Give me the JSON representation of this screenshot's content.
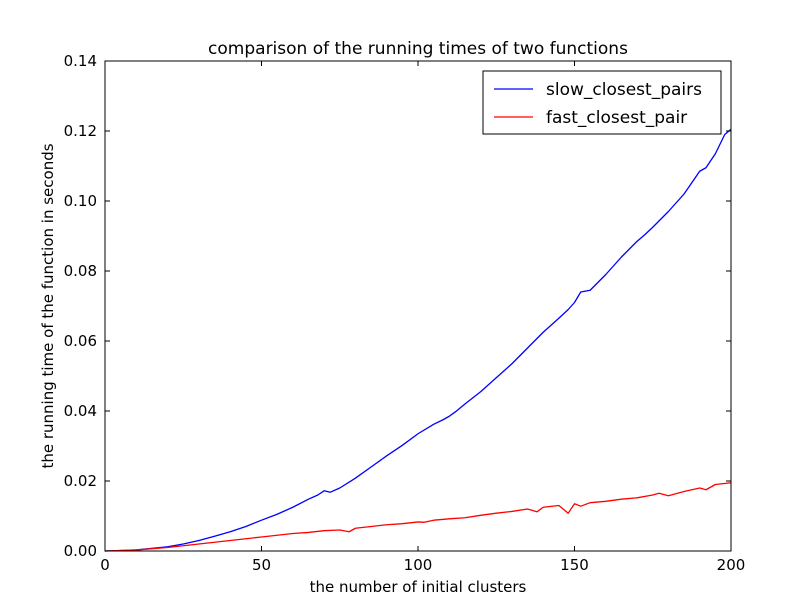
{
  "chart_data": {
    "type": "line",
    "title": "comparison of the running times of two functions",
    "xlabel": "the number of initial clusters",
    "ylabel": "the running time of the function in seconds",
    "xlim": [
      0,
      200
    ],
    "ylim": [
      0,
      0.14
    ],
    "xticks": [
      0,
      50,
      100,
      150,
      200
    ],
    "yticks": [
      0.0,
      0.02,
      0.04,
      0.06,
      0.08,
      0.1,
      0.12,
      0.14
    ],
    "xtick_labels": [
      "0",
      "50",
      "100",
      "150",
      "200"
    ],
    "ytick_labels": [
      "0.00",
      "0.02",
      "0.04",
      "0.06",
      "0.08",
      "0.10",
      "0.12",
      "0.14"
    ],
    "grid": false,
    "legend_position": "top-right",
    "series": [
      {
        "name": "slow_closest_pairs",
        "color": "#0000ff",
        "x": [
          0,
          10,
          20,
          25,
          30,
          35,
          40,
          45,
          50,
          55,
          60,
          65,
          68,
          70,
          72,
          75,
          80,
          85,
          90,
          95,
          100,
          105,
          108,
          110,
          112,
          115,
          120,
          125,
          130,
          135,
          140,
          145,
          148,
          150,
          152,
          155,
          160,
          165,
          170,
          172,
          175,
          180,
          185,
          190,
          192,
          195,
          198,
          200
        ],
        "y": [
          0,
          0.0003,
          0.0012,
          0.002,
          0.003,
          0.0042,
          0.0055,
          0.007,
          0.0088,
          0.0105,
          0.0125,
          0.0148,
          0.016,
          0.0172,
          0.0168,
          0.018,
          0.0208,
          0.024,
          0.0272,
          0.0302,
          0.0335,
          0.0362,
          0.0375,
          0.0385,
          0.0398,
          0.042,
          0.0455,
          0.0495,
          0.0535,
          0.058,
          0.0625,
          0.0665,
          0.069,
          0.071,
          0.074,
          0.0745,
          0.079,
          0.084,
          0.0885,
          0.09,
          0.0925,
          0.097,
          0.102,
          0.1085,
          0.1095,
          0.1135,
          0.119,
          0.1205
        ]
      },
      {
        "name": "fast_closest_pair",
        "color": "#ff0000",
        "x": [
          0,
          10,
          20,
          25,
          30,
          35,
          40,
          45,
          50,
          55,
          60,
          65,
          70,
          75,
          78,
          80,
          85,
          90,
          95,
          100,
          102,
          105,
          110,
          115,
          120,
          125,
          130,
          135,
          138,
          140,
          145,
          148,
          150,
          152,
          155,
          160,
          165,
          170,
          175,
          177,
          180,
          185,
          190,
          192,
          195,
          200
        ],
        "y": [
          0,
          0.0003,
          0.001,
          0.0015,
          0.002,
          0.0025,
          0.003,
          0.0035,
          0.004,
          0.0045,
          0.005,
          0.0053,
          0.0058,
          0.006,
          0.0055,
          0.0065,
          0.007,
          0.0075,
          0.0078,
          0.0083,
          0.0082,
          0.0088,
          0.0092,
          0.0095,
          0.0102,
          0.0108,
          0.0113,
          0.012,
          0.0112,
          0.0125,
          0.013,
          0.0108,
          0.0135,
          0.0128,
          0.0138,
          0.0142,
          0.0148,
          0.0152,
          0.016,
          0.0165,
          0.0158,
          0.017,
          0.018,
          0.0175,
          0.019,
          0.0195
        ]
      }
    ]
  }
}
